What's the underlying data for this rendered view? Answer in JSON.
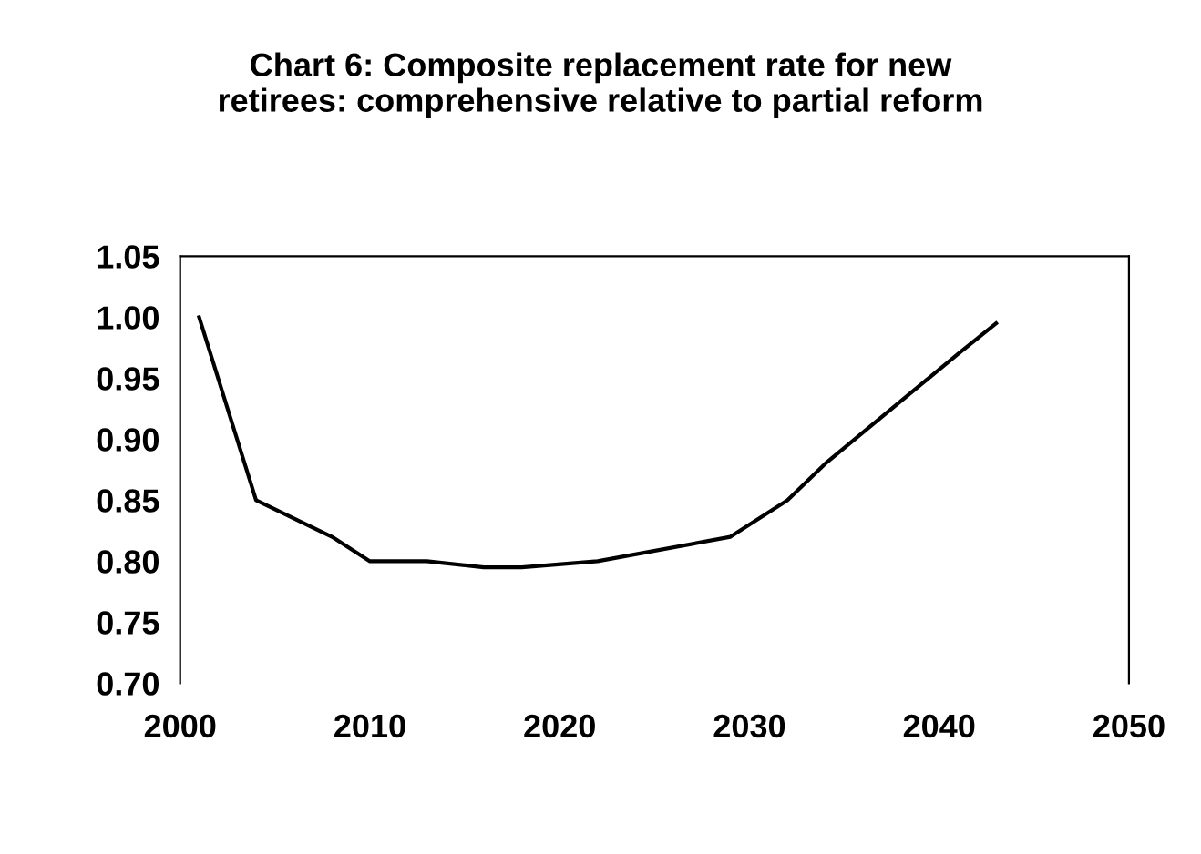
{
  "chart_data": {
    "type": "line",
    "title": "Chart 6: Composite replacement rate for new\nretirees: comprehensive relative to partial reform",
    "x": [
      2001,
      2004,
      2008,
      2010,
      2013,
      2016,
      2018,
      2022,
      2029,
      2032,
      2034,
      2041,
      2043
    ],
    "series": [
      {
        "color": "#000000",
        "values": [
          1.0,
          0.85,
          0.82,
          0.8,
          0.8,
          0.795,
          0.795,
          0.8,
          0.82,
          0.85,
          0.88,
          0.97,
          0.995
        ]
      }
    ],
    "xlim": [
      2000,
      2050
    ],
    "xticks": [
      2000,
      2010,
      2020,
      2030,
      2040,
      2050
    ],
    "ylim": [
      0.7,
      1.05
    ],
    "yticks": [
      {
        "value": 0.7,
        "label": "0.70"
      },
      {
        "value": 0.75,
        "label": "0.75"
      },
      {
        "value": 0.8,
        "label": "0.80"
      },
      {
        "value": 0.85,
        "label": "0.85"
      },
      {
        "value": 0.9,
        "label": "0.90"
      },
      {
        "value": 0.95,
        "label": "0.95"
      },
      {
        "value": 1.0,
        "label": "1.00"
      },
      {
        "value": 1.05,
        "label": "1.05"
      }
    ],
    "grid": false,
    "legend": false,
    "marker": "none",
    "line_style": "solid"
  }
}
